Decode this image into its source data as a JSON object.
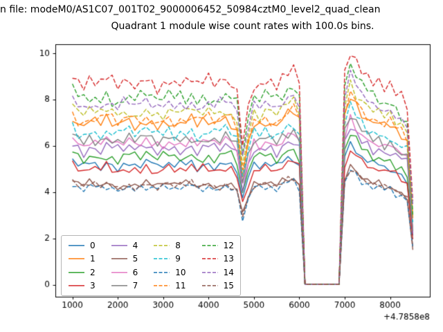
{
  "figure": {
    "suptitle": "n file: modeM0/AS1C07_001T02_9000006452_50984cztM0_level2_quad_clean",
    "title": "Quadrant 1 module wise count rates with 100.0s bins."
  },
  "chart_data": {
    "type": "line",
    "title": "Quadrant 1 module wise count rates with 100.0s bins.",
    "xlabel": "",
    "ylabel": "",
    "x_offset_label": "+4.7858e8",
    "xlim": [
      625,
      8875
    ],
    "ylim": [
      -0.5,
      10.4
    ],
    "xticks": [
      1000,
      2000,
      3000,
      4000,
      5000,
      6000,
      7000,
      8000
    ],
    "yticks": [
      0,
      2,
      4,
      6,
      8,
      10
    ],
    "grid": false,
    "legend_position": "lower left",
    "x": {
      "start": 1000,
      "step": 125,
      "count": 61
    },
    "profile": [
      1.04,
      1.0,
      0.98,
      1.01,
      1.0,
      0.99,
      1.02,
      1.0,
      0.98,
      1.0,
      1.01,
      0.99,
      1.0,
      1.02,
      1.0,
      0.98,
      1.0,
      1.01,
      0.99,
      1.0,
      1.0,
      1.02,
      0.98,
      1.0,
      1.01,
      0.99,
      1.0,
      1.02,
      1.0,
      0.96,
      0.7,
      0.88,
      1.0,
      0.99,
      1.01,
      1.0,
      0.98,
      1.02,
      1.05,
      1.06,
      1.0,
      0.004,
      0.004,
      0.004,
      0.004,
      0.004,
      0.004,
      0.004,
      1.05,
      1.17,
      1.12,
      1.06,
      1.03,
      1.0,
      1.0,
      0.97,
      0.98,
      0.94,
      0.92,
      0.88,
      0.4
    ],
    "noise_pattern": [
      0.1,
      -0.4,
      0.35,
      -0.15,
      0.5,
      -0.55,
      0.2,
      0.05,
      -0.3,
      0.45,
      -0.2,
      0.6,
      -0.5,
      0.15,
      -0.05,
      0.3,
      -0.6
    ],
    "series": [
      {
        "label": "0",
        "color": "#1f77b4",
        "style": "solid",
        "base": 5.2,
        "noise_scale": 0.3
      },
      {
        "label": "1",
        "color": "#ff7f0e",
        "style": "solid",
        "base": 7.0,
        "noise_scale": 0.32
      },
      {
        "label": "2",
        "color": "#2ca02c",
        "style": "solid",
        "base": 5.55,
        "noise_scale": 0.3
      },
      {
        "label": "3",
        "color": "#d62728",
        "style": "solid",
        "base": 5.0,
        "noise_scale": 0.3
      },
      {
        "label": "4",
        "color": "#9467bd",
        "style": "solid",
        "base": 5.9,
        "noise_scale": 0.3
      },
      {
        "label": "5",
        "color": "#8c564b",
        "style": "solid",
        "base": 4.35,
        "noise_scale": 0.22
      },
      {
        "label": "6",
        "color": "#e377c2",
        "style": "solid",
        "base": 6.15,
        "noise_scale": 0.3
      },
      {
        "label": "7",
        "color": "#7f7f7f",
        "style": "solid",
        "base": 6.3,
        "noise_scale": 0.32
      },
      {
        "label": "8",
        "color": "#bcbd22",
        "style": "dashed",
        "base": 7.45,
        "noise_scale": 0.35
      },
      {
        "label": "9",
        "color": "#17becf",
        "style": "dashed",
        "base": 6.6,
        "noise_scale": 0.35
      },
      {
        "label": "10",
        "color": "#1f77b4",
        "style": "dashed",
        "base": 4.2,
        "noise_scale": 0.22
      },
      {
        "label": "11",
        "color": "#ff7f0e",
        "style": "dashed",
        "base": 7.15,
        "noise_scale": 0.35
      },
      {
        "label": "12",
        "color": "#2ca02c",
        "style": "dashed",
        "base": 8.1,
        "noise_scale": 0.4
      },
      {
        "label": "13",
        "color": "#d62728",
        "style": "dashed",
        "base": 8.75,
        "noise_scale": 0.45
      },
      {
        "label": "14",
        "color": "#9467bd",
        "style": "dashed",
        "base": 7.8,
        "noise_scale": 0.38
      },
      {
        "label": "15",
        "color": "#8c564b",
        "style": "dashed",
        "base": 4.3,
        "noise_scale": 0.22
      }
    ]
  }
}
